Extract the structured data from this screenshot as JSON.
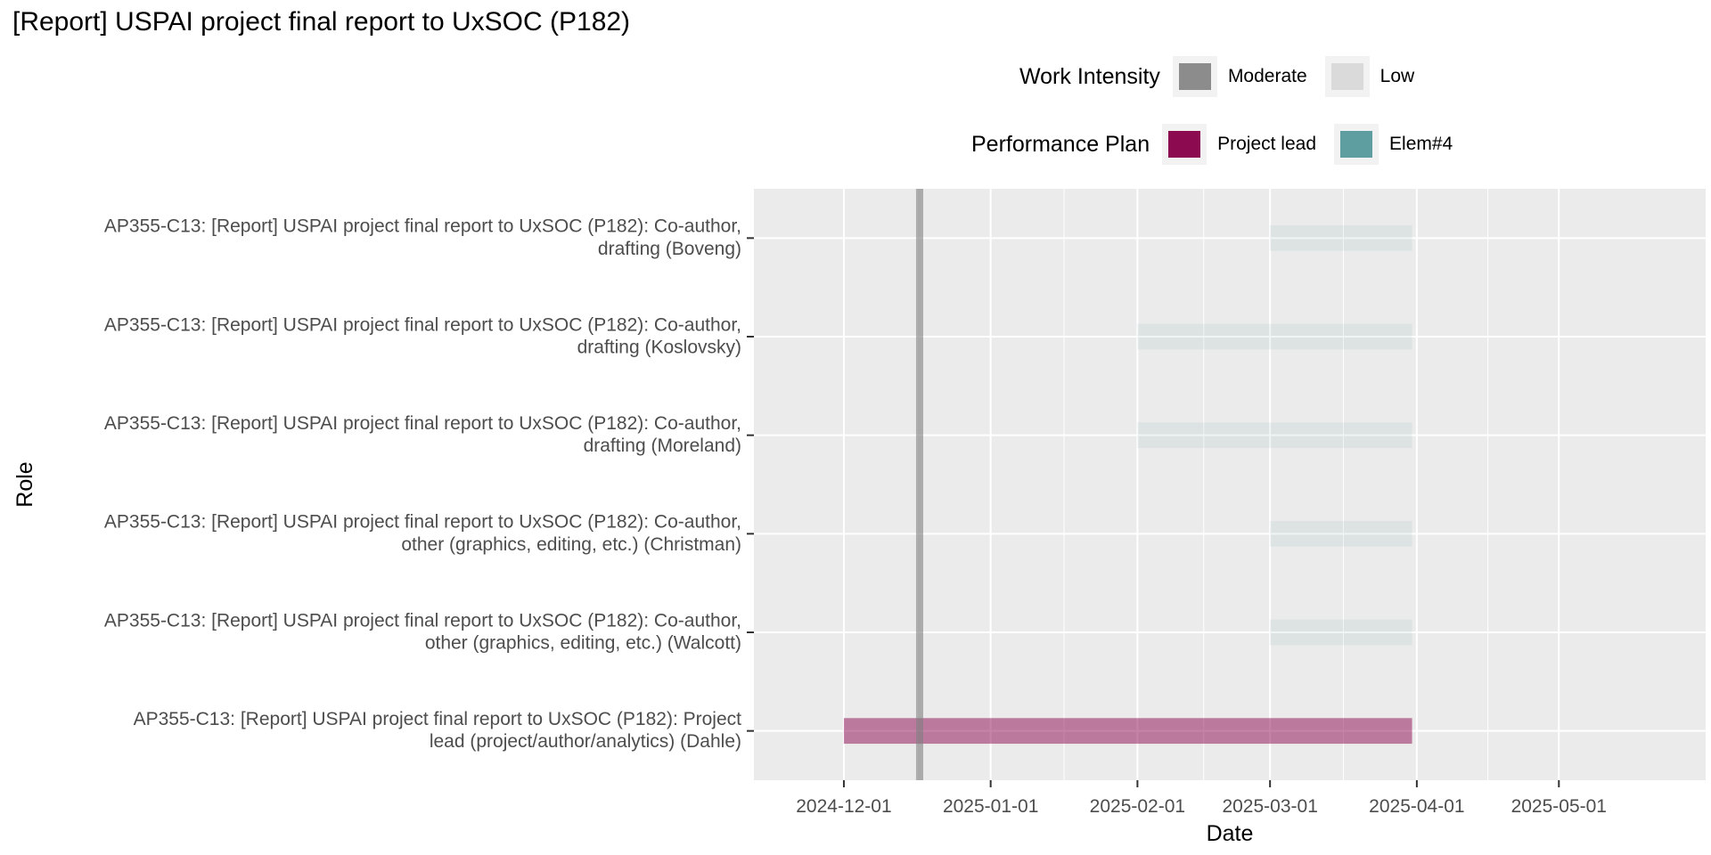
{
  "chart_data": {
    "type": "gantt",
    "title": "[Report] USPAI project final report to UxSOC (P182)",
    "xlabel": "Date",
    "ylabel": "Role",
    "xlim": [
      "2024-11-12",
      "2025-06-01"
    ],
    "x_ticks": [
      "2024-12-01",
      "2025-01-01",
      "2025-02-01",
      "2025-03-01",
      "2025-04-01",
      "2025-05-01"
    ],
    "today_line": "2024-12-17",
    "grid": true,
    "colors": {
      "panel_bg": "#ebebeb",
      "grid": "#ffffff",
      "today_line": "#7f7f7f",
      "legend_key_bg": "#f2f2f2",
      "moderate": "#8c8c8c",
      "low": "#dadada",
      "project_lead": "#8b0a50",
      "elem4": "#5f9ea0"
    },
    "legends": [
      {
        "title": "Work Intensity",
        "items": [
          {
            "label": "Moderate",
            "color": "#8c8c8c"
          },
          {
            "label": "Low",
            "color": "#dadada"
          }
        ]
      },
      {
        "title": "Performance Plan",
        "items": [
          {
            "label": "Project lead",
            "color": "#8b0a50"
          },
          {
            "label": "Elem#4",
            "color": "#5f9ea0"
          }
        ]
      }
    ],
    "rows": [
      {
        "label_lines": [
          "AP355-C13: [Report] USPAI project final report to UxSOC (P182): Co-author,",
          "drafting (Boveng)"
        ],
        "start": "2025-03-01",
        "end": "2025-03-31",
        "plan": "Elem#4",
        "intensity": "Low"
      },
      {
        "label_lines": [
          "AP355-C13: [Report] USPAI project final report to UxSOC (P182): Co-author,",
          "drafting (Koslovsky)"
        ],
        "start": "2025-02-01",
        "end": "2025-03-31",
        "plan": "Elem#4",
        "intensity": "Low"
      },
      {
        "label_lines": [
          "AP355-C13: [Report] USPAI project final report to UxSOC (P182): Co-author,",
          "drafting (Moreland)"
        ],
        "start": "2025-02-01",
        "end": "2025-03-31",
        "plan": "Elem#4",
        "intensity": "Low"
      },
      {
        "label_lines": [
          "AP355-C13: [Report] USPAI project final report to UxSOC (P182): Co-author,",
          "other (graphics, editing, etc.) (Christman)"
        ],
        "start": "2025-03-01",
        "end": "2025-03-31",
        "plan": "Elem#4",
        "intensity": "Low"
      },
      {
        "label_lines": [
          "AP355-C13: [Report] USPAI project final report to UxSOC (P182): Co-author,",
          "other (graphics, editing, etc.) (Walcott)"
        ],
        "start": "2025-03-01",
        "end": "2025-03-31",
        "plan": "Elem#4",
        "intensity": "Low"
      },
      {
        "label_lines": [
          "AP355-C13: [Report] USPAI project final report to UxSOC (P182): Project",
          "lead (project/author/analytics) (Dahle)"
        ],
        "start": "2024-12-01",
        "end": "2025-03-31",
        "plan": "Project lead",
        "intensity": "Moderate"
      }
    ]
  }
}
